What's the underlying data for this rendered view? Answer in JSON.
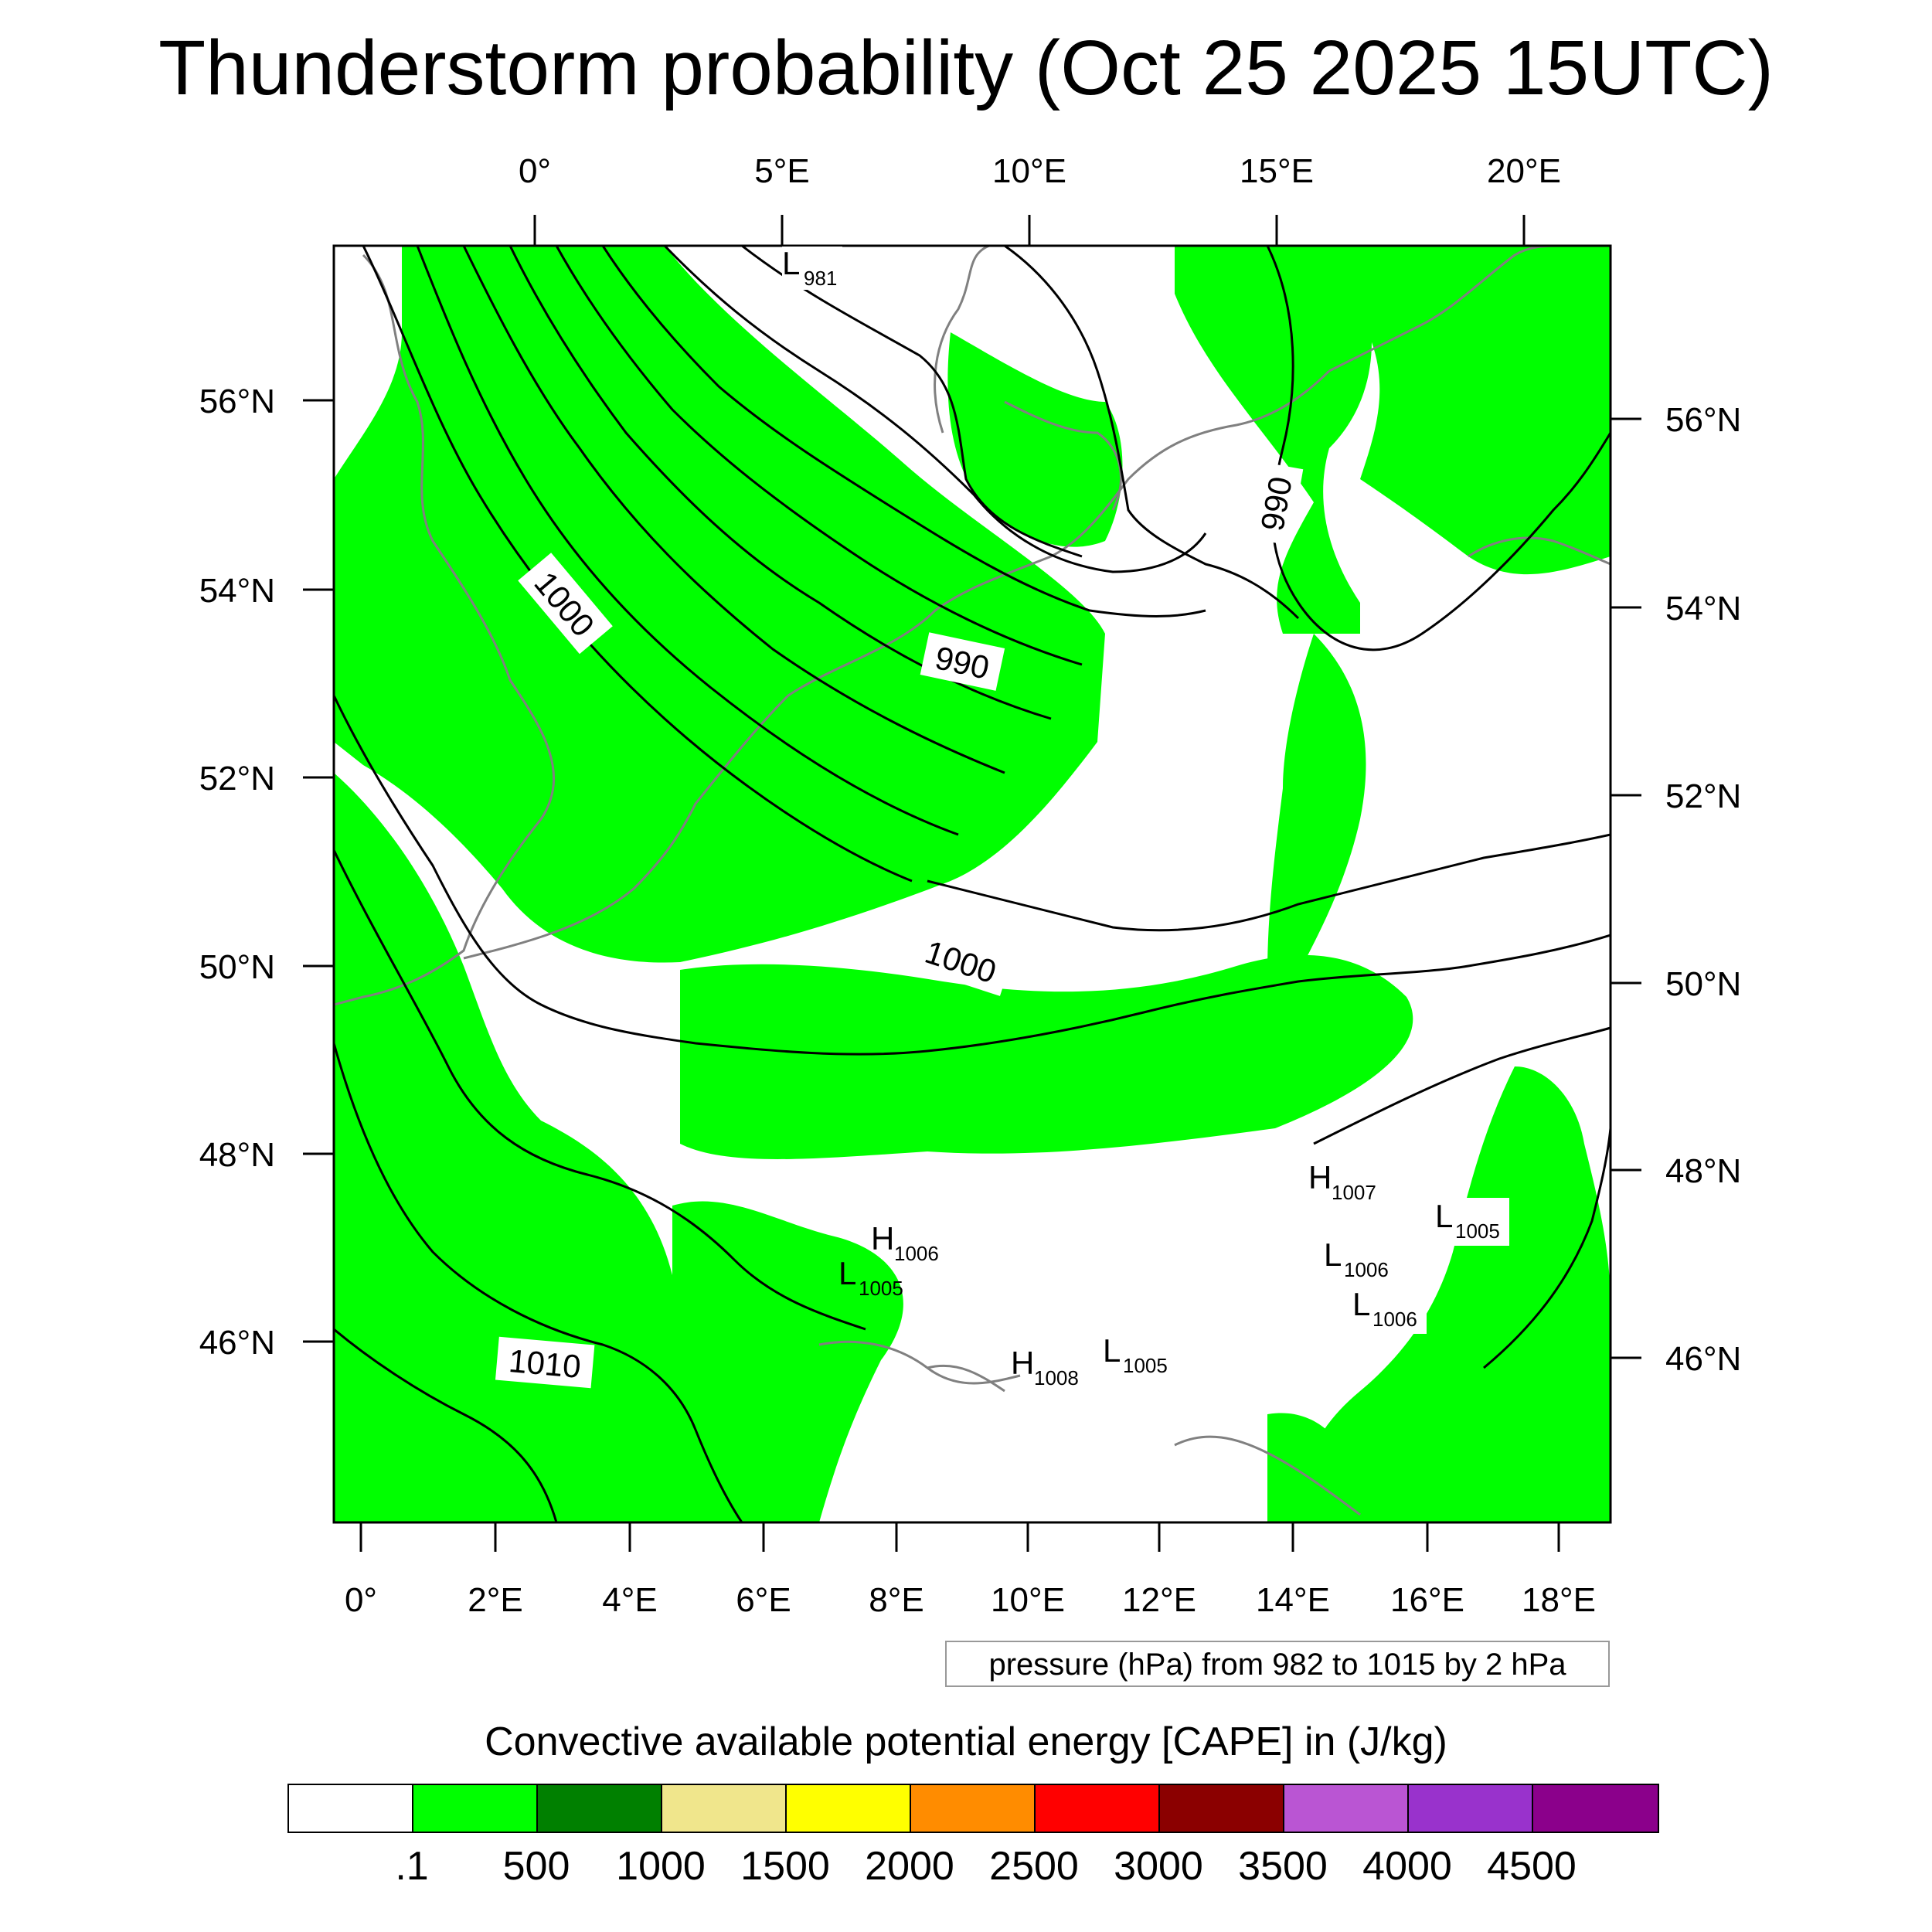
{
  "title": "Thunderstorm probability (Oct 25 2025 15UTC)",
  "map": {
    "top_lon_labels": [
      "0°",
      "5°E",
      "10°E",
      "15°E",
      "20°E"
    ],
    "bottom_lon_labels": [
      "0°",
      "2°E",
      "4°E",
      "6°E",
      "8°E",
      "10°E",
      "12°E",
      "14°E",
      "16°E",
      "18°E"
    ],
    "left_lat_labels": [
      "56°N",
      "54°N",
      "52°N",
      "50°N",
      "48°N",
      "46°N"
    ],
    "right_lat_labels": [
      "56°N",
      "54°N",
      "52°N",
      "50°N",
      "48°N",
      "46°N"
    ],
    "isobar_labels": [
      "1000",
      "990",
      "990",
      "1000",
      "1010"
    ],
    "pressure_centers": [
      {
        "letter": "L",
        "value": "981"
      },
      {
        "letter": "H",
        "value": "1007"
      },
      {
        "letter": "L",
        "value": "1005"
      },
      {
        "letter": "H",
        "value": "1006"
      },
      {
        "letter": "L",
        "value": "1006"
      },
      {
        "letter": "L",
        "value": "1005"
      },
      {
        "letter": "L",
        "value": "1006"
      },
      {
        "letter": "H",
        "value": "1008"
      },
      {
        "letter": "L",
        "value": "1005"
      }
    ],
    "colors": {
      "cape_low": "#00ff00",
      "isobar": "#000000",
      "coastline": "#808080"
    }
  },
  "contour_note": "pressure (hPa) from 982 to 1015 by 2 hPa",
  "colorbar": {
    "title": "Convective available potential energy [CAPE] in (J/kg)",
    "colors": [
      "#ffffff",
      "#00ff00",
      "#008000",
      "#f0e68c",
      "#ffff00",
      "#ff8c00",
      "#ff0000",
      "#8b0000",
      "#ba55d3",
      "#9932cc",
      "#8b008b"
    ],
    "labels": [
      ".1",
      "500",
      "1000",
      "1500",
      "2000",
      "2500",
      "3000",
      "3500",
      "4000",
      "4500"
    ]
  }
}
